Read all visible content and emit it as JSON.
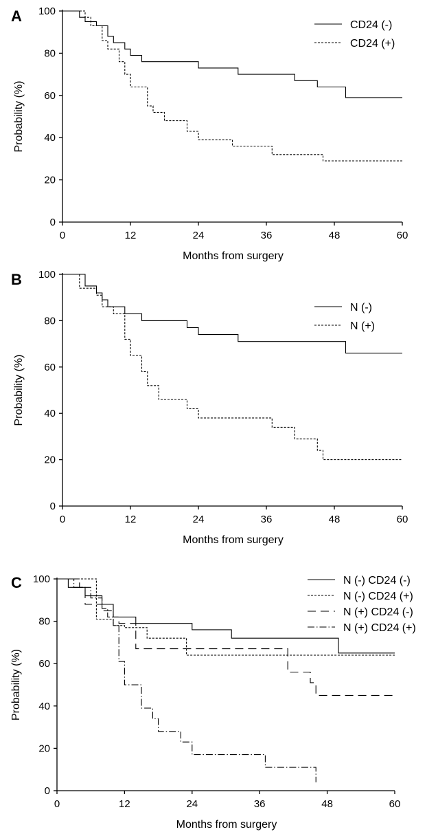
{
  "chart_data": [
    {
      "type": "line",
      "subtype": "kaplan-meier",
      "panel_label": "A",
      "xlabel": "Months from surgery",
      "ylabel": "Probability (%)",
      "xlim": [
        0,
        60
      ],
      "ylim": [
        0,
        100
      ],
      "x_ticks": [
        0,
        12,
        24,
        36,
        48,
        60
      ],
      "y_ticks": [
        0,
        20,
        40,
        60,
        80,
        100
      ],
      "legend_position": "top-right",
      "series": [
        {
          "name": "CD24 (-)",
          "style": "solid",
          "x": [
            0,
            3,
            4,
            6,
            8,
            9,
            11,
            12,
            14,
            24,
            31,
            41,
            45,
            50,
            60
          ],
          "y": [
            100,
            97,
            95,
            93,
            88,
            85,
            82,
            79,
            76,
            73,
            70,
            67,
            64,
            59,
            59
          ]
        },
        {
          "name": "CD24 (+)",
          "style": "dotted",
          "x": [
            0,
            4,
            5,
            7,
            8,
            10,
            11,
            12,
            15,
            16,
            18,
            22,
            24,
            30,
            37,
            46,
            60
          ],
          "y": [
            100,
            97,
            93,
            86,
            82,
            76,
            70,
            64,
            55,
            52,
            48,
            43,
            39,
            36,
            32,
            29,
            29
          ]
        }
      ]
    },
    {
      "type": "line",
      "subtype": "kaplan-meier",
      "panel_label": "B",
      "xlabel": "Months from surgery",
      "ylabel": "Probability (%)",
      "xlim": [
        0,
        60
      ],
      "ylim": [
        0,
        100
      ],
      "x_ticks": [
        0,
        12,
        24,
        36,
        48,
        60
      ],
      "y_ticks": [
        0,
        20,
        40,
        60,
        80,
        100
      ],
      "legend_position": "top-right",
      "series": [
        {
          "name": "N (-)",
          "style": "solid",
          "x": [
            0,
            4,
            6,
            7,
            8,
            11,
            14,
            22,
            24,
            31,
            50,
            60
          ],
          "y": [
            100,
            95,
            92,
            89,
            86,
            83,
            80,
            77,
            74,
            71,
            66,
            66
          ]
        },
        {
          "name": "N (+)",
          "style": "dotted",
          "x": [
            0,
            3,
            6,
            7,
            9,
            11,
            12,
            14,
            15,
            17,
            22,
            24,
            37,
            41,
            45,
            46,
            60
          ],
          "y": [
            100,
            94,
            91,
            86,
            83,
            72,
            65,
            58,
            52,
            46,
            42,
            38,
            34,
            29,
            24,
            20,
            20
          ]
        }
      ]
    },
    {
      "type": "line",
      "subtype": "kaplan-meier",
      "panel_label": "C",
      "xlabel": "Months from surgery",
      "ylabel": "Probability (%)",
      "xlim": [
        0,
        60
      ],
      "ylim": [
        0,
        100
      ],
      "x_ticks": [
        0,
        12,
        24,
        36,
        48,
        60
      ],
      "y_ticks": [
        0,
        20,
        40,
        60,
        80,
        100
      ],
      "legend_position": "top-right",
      "series": [
        {
          "name": "N (-) CD24 (-)",
          "style": "solid",
          "x": [
            0,
            2,
            5,
            8,
            10,
            14,
            24,
            31,
            50,
            60
          ],
          "y": [
            100,
            96,
            92,
            88,
            82,
            79,
            76,
            72,
            65,
            65
          ]
        },
        {
          "name": "N (-) CD24 (+)",
          "style": "dotted",
          "x": [
            0,
            3,
            7,
            10,
            12,
            16,
            23,
            60
          ],
          "y": [
            100,
            100,
            81,
            78,
            77,
            72,
            64,
            64
          ]
        },
        {
          "name": "N (+) CD24 (-)",
          "style": "dashed",
          "x": [
            0,
            4,
            5,
            8,
            10,
            11,
            14,
            41,
            45,
            46,
            60
          ],
          "y": [
            100,
            96,
            88,
            85,
            82,
            79,
            67,
            56,
            51,
            45,
            45
          ]
        },
        {
          "name": "N (+) CD24 (+)",
          "style": "dash-dot",
          "x": [
            0,
            3,
            6,
            8,
            9,
            10,
            11,
            12,
            15,
            17,
            18,
            22,
            24,
            37,
            46
          ],
          "y": [
            100,
            96,
            91,
            86,
            82,
            78,
            61,
            50,
            39,
            34,
            28,
            23,
            17,
            11,
            4
          ]
        }
      ]
    }
  ]
}
